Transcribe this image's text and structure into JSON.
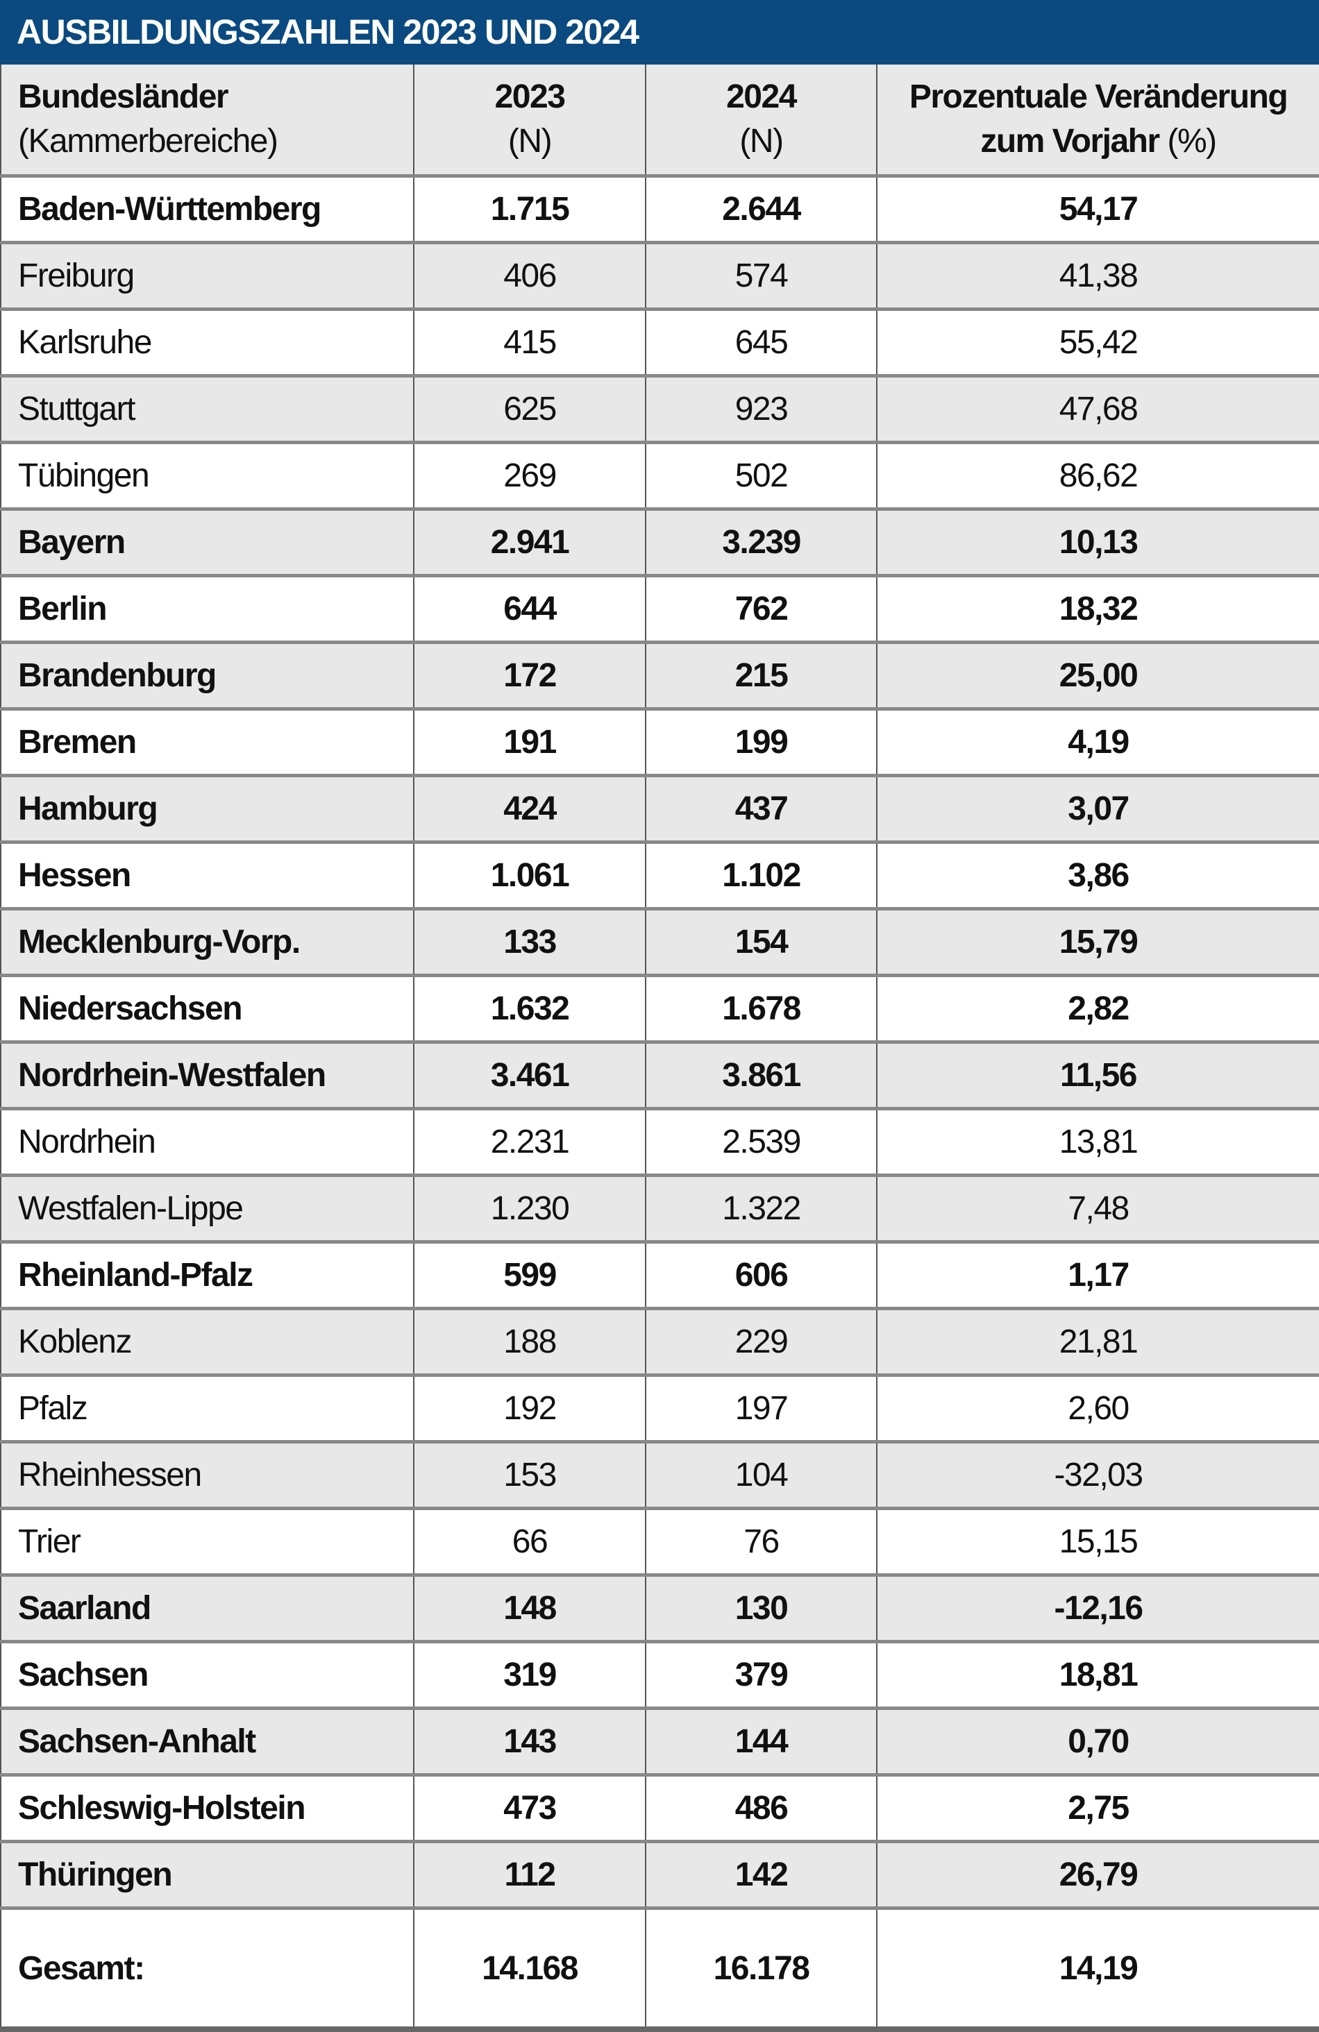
{
  "title": "AUSBILDUNGSZAHLEN 2023 UND 2024",
  "header": {
    "col1_line1": "Bundesländer",
    "col1_line2": "(Kammerbereiche)",
    "col2_line1": "2023",
    "col2_line2": "(N)",
    "col3_line1": "2024",
    "col3_line2": "(N)",
    "col4_line1": "Prozentuale Veränderung",
    "col4_line2": "zum Vorjahr",
    "col4_unit": "(%)"
  },
  "rows": [
    {
      "name": "Baden-Württemberg",
      "y2023": "1.715",
      "y2024": "2.644",
      "change": "54,17",
      "bold": true
    },
    {
      "name": "Freiburg",
      "y2023": "406",
      "y2024": "574",
      "change": "41,38",
      "bold": false
    },
    {
      "name": "Karlsruhe",
      "y2023": "415",
      "y2024": "645",
      "change": "55,42",
      "bold": false
    },
    {
      "name": "Stuttgart",
      "y2023": "625",
      "y2024": "923",
      "change": "47,68",
      "bold": false
    },
    {
      "name": "Tübingen",
      "y2023": "269",
      "y2024": "502",
      "change": "86,62",
      "bold": false
    },
    {
      "name": "Bayern",
      "y2023": "2.941",
      "y2024": "3.239",
      "change": "10,13",
      "bold": true
    },
    {
      "name": "Berlin",
      "y2023": "644",
      "y2024": "762",
      "change": "18,32",
      "bold": true
    },
    {
      "name": "Brandenburg",
      "y2023": "172",
      "y2024": "215",
      "change": "25,00",
      "bold": true
    },
    {
      "name": "Bremen",
      "y2023": "191",
      "y2024": "199",
      "change": "4,19",
      "bold": true
    },
    {
      "name": "Hamburg",
      "y2023": "424",
      "y2024": "437",
      "change": "3,07",
      "bold": true
    },
    {
      "name": "Hessen",
      "y2023": "1.061",
      "y2024": "1.102",
      "change": "3,86",
      "bold": true
    },
    {
      "name": "Mecklenburg-Vorp.",
      "y2023": "133",
      "y2024": "154",
      "change": "15,79",
      "bold": true
    },
    {
      "name": "Niedersachsen",
      "y2023": "1.632",
      "y2024": "1.678",
      "change": "2,82",
      "bold": true
    },
    {
      "name": "Nordrhein-Westfalen",
      "y2023": "3.461",
      "y2024": "3.861",
      "change": "11,56",
      "bold": true
    },
    {
      "name": "Nordrhein",
      "y2023": "2.231",
      "y2024": "2.539",
      "change": "13,81",
      "bold": false
    },
    {
      "name": "Westfalen-Lippe",
      "y2023": "1.230",
      "y2024": "1.322",
      "change": "7,48",
      "bold": false
    },
    {
      "name": "Rheinland-Pfalz",
      "y2023": "599",
      "y2024": "606",
      "change": "1,17",
      "bold": true
    },
    {
      "name": "Koblenz",
      "y2023": "188",
      "y2024": "229",
      "change": "21,81",
      "bold": false
    },
    {
      "name": "Pfalz",
      "y2023": "192",
      "y2024": "197",
      "change": "2,60",
      "bold": false
    },
    {
      "name": "Rheinhessen",
      "y2023": "153",
      "y2024": "104",
      "change": "-32,03",
      "bold": false
    },
    {
      "name": "Trier",
      "y2023": "66",
      "y2024": "76",
      "change": "15,15",
      "bold": false
    },
    {
      "name": "Saarland",
      "y2023": "148",
      "y2024": "130",
      "change": "-12,16",
      "bold": true
    },
    {
      "name": "Sachsen",
      "y2023": "319",
      "y2024": "379",
      "change": "18,81",
      "bold": true
    },
    {
      "name": "Sachsen-Anhalt",
      "y2023": "143",
      "y2024": "144",
      "change": "0,70",
      "bold": true
    },
    {
      "name": "Schleswig-Holstein",
      "y2023": "473",
      "y2024": "486",
      "change": "2,75",
      "bold": true
    },
    {
      "name": "Thüringen",
      "y2023": "112",
      "y2024": "142",
      "change": "26,79",
      "bold": true
    }
  ],
  "total": {
    "name": "Gesamt:",
    "y2023": "14.168",
    "y2024": "16.178",
    "change": "14,19"
  },
  "colors": {
    "title_bg": "#0a4a80",
    "stripe": "#e8e8e8"
  }
}
